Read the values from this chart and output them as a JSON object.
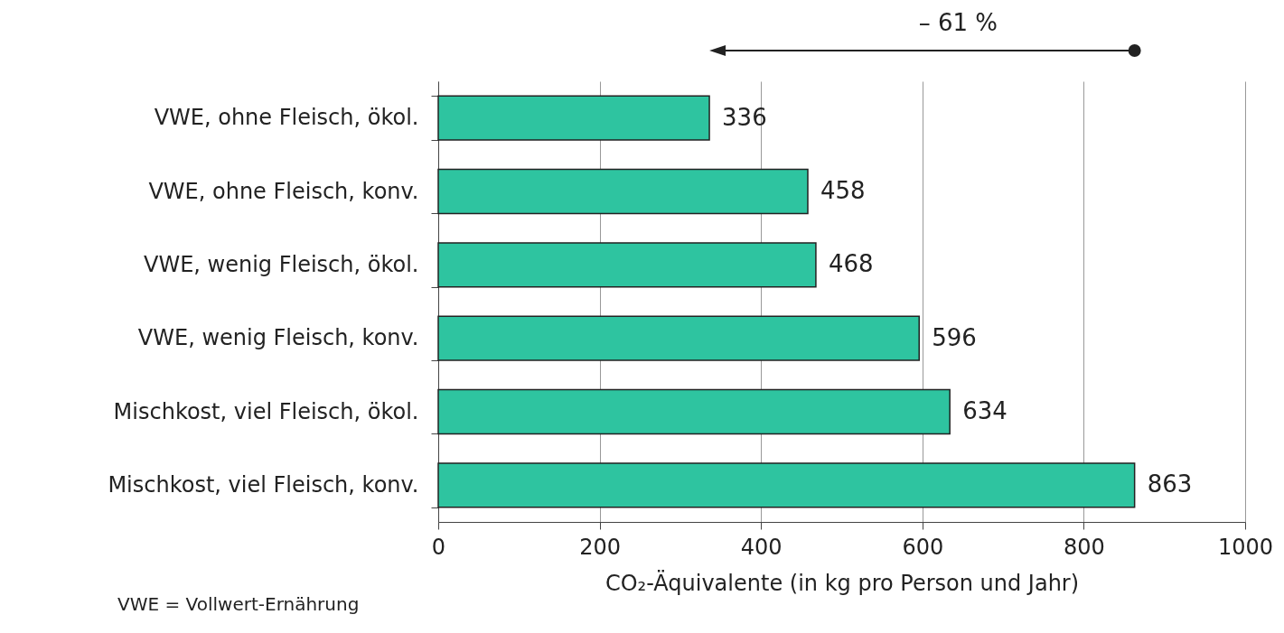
{
  "chart_data": {
    "type": "bar",
    "orientation": "horizontal",
    "categories": [
      "VWE, ohne Fleisch, ökol.",
      "VWE, ohne Fleisch, konv.",
      "VWE, wenig Fleisch, ökol.",
      "VWE, wenig Fleisch, konv.",
      "Mischkost, viel Fleisch, ökol.",
      "Mischkost, viel Fleisch, konv."
    ],
    "values": [
      336,
      458,
      468,
      596,
      634,
      863
    ],
    "color": "#2ec4a0",
    "data_labels": true,
    "xlabel": "CO₂-Äquivalente (in kg pro Person und Jahr)",
    "xlim": [
      0,
      1000
    ],
    "xticks": [
      0,
      200,
      400,
      600,
      800,
      1000
    ],
    "grid": "x",
    "annotations": [
      "– 61 %",
      "VWE = Vollwert-Ernährung"
    ]
  }
}
